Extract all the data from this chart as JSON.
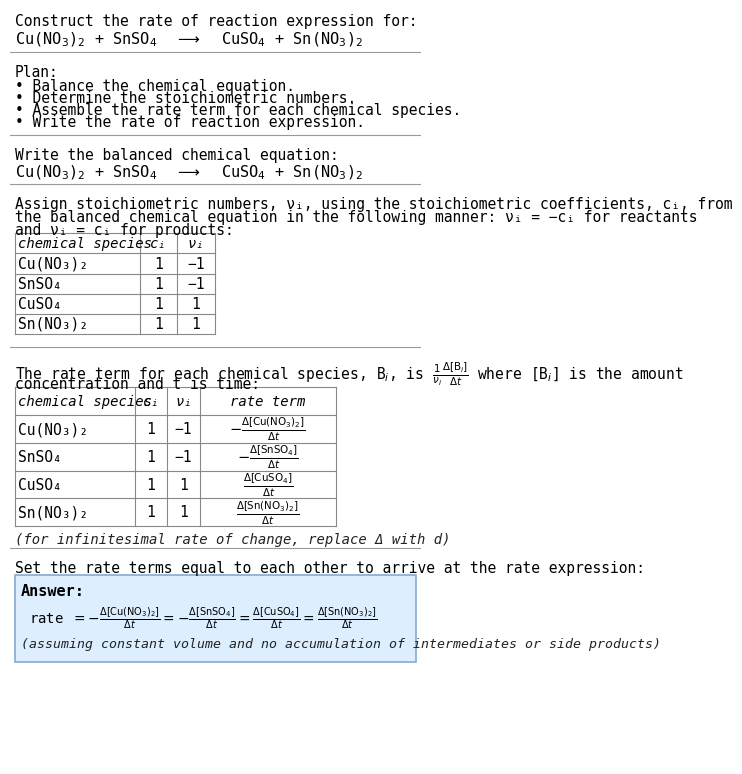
{
  "title_line1": "Construct the rate of reaction expression for:",
  "title_line2_plain": "Cu(NO",
  "bg_color": "#ffffff",
  "table_border_color": "#888888",
  "answer_box_color": "#ddeeff",
  "answer_box_border": "#88aacc",
  "text_color": "#000000",
  "separator_color": "#999999",
  "plan_header": "Plan:",
  "plan_items": [
    "• Balance the chemical equation.",
    "• Determine the stoichiometric numbers.",
    "• Assemble the rate term for each chemical species.",
    "• Write the rate of reaction expression."
  ],
  "balanced_header": "Write the balanced chemical equation:",
  "stoich_intro_line1": "Assign stoichiometric numbers, νᵢ, using the stoichiometric coefficients, cᵢ, from",
  "stoich_intro_line2": "the balanced chemical equation in the following manner: νᵢ = −cᵢ for reactants",
  "stoich_intro_line3": "and νᵢ = cᵢ for products:",
  "table1_col0_header": "chemical species",
  "table1_col1_header": "cᵢ",
  "table1_col2_header": "νᵢ",
  "table1_rows": [
    [
      "Cu(NO₃)₂",
      "1",
      "−1"
    ],
    [
      "SnSO₄",
      "1",
      "−1"
    ],
    [
      "CuSO₄",
      "1",
      "1"
    ],
    [
      "Sn(NO₃)₂",
      "1",
      "1"
    ]
  ],
  "rate_intro_line1": "The rate term for each chemical species, Bᵢ, is  ¹⁄ᵥᵢ  Δ[Bᵢ]/Δt  where [Bᵢ] is the amount",
  "rate_intro_line2": "concentration and t is time:",
  "table2_col0_header": "chemical species",
  "table2_col1_header": "cᵢ",
  "table2_col2_header": "νᵢ",
  "table2_col3_header": "rate term",
  "table2_rows": [
    [
      "Cu(NO₃)₂",
      "1",
      "−1",
      "−Δ[Cu(NO₃)₂]/Δt"
    ],
    [
      "SnSO₄",
      "1",
      "−1",
      "−Δ[SnSO₄]/Δt"
    ],
    [
      "CuSO₄",
      "1",
      "1",
      "Δ[CuSO₄]/Δt"
    ],
    [
      "Sn(NO₃)₂",
      "1",
      "1",
      "Δ[Sn(NO₃)₂]/Δt"
    ]
  ],
  "infinitesimal_note": "(for infinitesimal rate of change, replace Δ with d)",
  "final_intro": "Set the rate terms equal to each other to arrive at the rate expression:",
  "answer_label": "Answer:",
  "final_note": "(assuming constant volume and no accumulation of intermediates or side products)"
}
